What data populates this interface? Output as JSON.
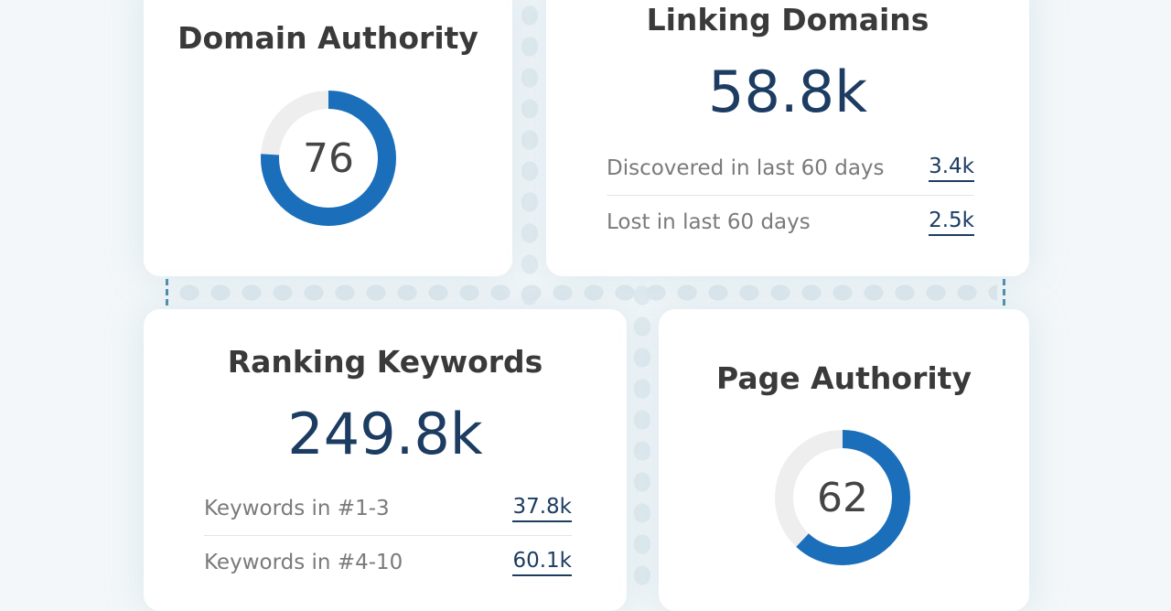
{
  "cards": [
    {
      "title": "Domain Authority",
      "score": 76,
      "range": [
        0,
        100
      ]
    },
    {
      "title": "Linking Domains",
      "value": "58.8k",
      "rows": [
        {
          "label": "Discovered in last 60 days",
          "value": "3.4k"
        },
        {
          "label": "Lost in last 60 days",
          "value": "2.5k"
        }
      ]
    },
    {
      "title": "Ranking Keywords",
      "value": "249.8k",
      "rows": [
        {
          "label": "Keywords in #1-3",
          "value": "37.8k"
        },
        {
          "label": "Keywords in #4-10",
          "value": "60.1k"
        }
      ]
    },
    {
      "title": "Page Authority",
      "score": 62,
      "range": [
        0,
        100
      ]
    }
  ]
}
